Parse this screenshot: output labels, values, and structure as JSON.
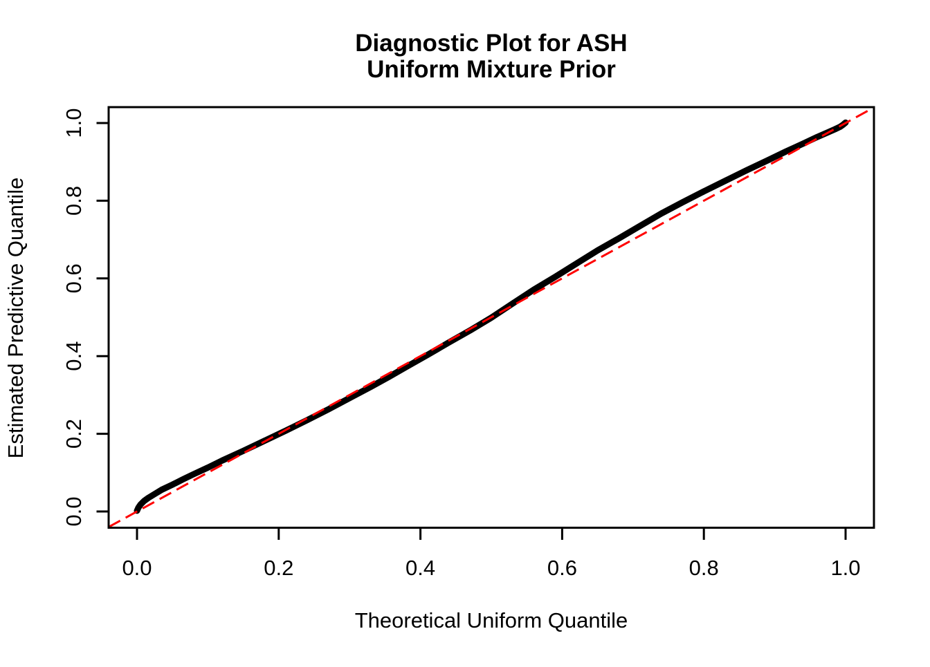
{
  "chart_data": {
    "type": "scatter",
    "title_lines": [
      "Diagnostic Plot for ASH",
      "Uniform Mixture Prior"
    ],
    "xlabel": "Theoretical Uniform Quantile",
    "ylabel": "Estimated Predictive Quantile",
    "xlim": [
      -0.04,
      1.04
    ],
    "ylim": [
      -0.04,
      1.04
    ],
    "grid": false,
    "legend": null,
    "x_tick_values": [
      0.0,
      0.2,
      0.4,
      0.6,
      0.8,
      1.0
    ],
    "x_tick_labels": [
      "0.0",
      "0.2",
      "0.4",
      "0.6",
      "0.8",
      "1.0"
    ],
    "y_tick_values": [
      0.0,
      0.2,
      0.4,
      0.6,
      0.8,
      1.0
    ],
    "y_tick_labels": [
      "0.0",
      "0.2",
      "0.4",
      "0.6",
      "0.8",
      "1.0"
    ],
    "colors": {
      "background": "#FFFFFF",
      "axis": "#000000",
      "curve": "#000000",
      "reference_line": "#FF0000"
    },
    "series": [
      {
        "name": "ash-estimated-predictive-quantiles",
        "style": "thick-point-curve",
        "color": "#000000",
        "line_width": 9,
        "points": [
          [
            0.0,
            0.002
          ],
          [
            0.002,
            0.01
          ],
          [
            0.005,
            0.018
          ],
          [
            0.01,
            0.027
          ],
          [
            0.016,
            0.035
          ],
          [
            0.025,
            0.045
          ],
          [
            0.035,
            0.056
          ],
          [
            0.05,
            0.069
          ],
          [
            0.065,
            0.083
          ],
          [
            0.08,
            0.096
          ],
          [
            0.1,
            0.113
          ],
          [
            0.12,
            0.131
          ],
          [
            0.15,
            0.156
          ],
          [
            0.18,
            0.182
          ],
          [
            0.21,
            0.208
          ],
          [
            0.24,
            0.235
          ],
          [
            0.27,
            0.263
          ],
          [
            0.3,
            0.292
          ],
          [
            0.33,
            0.321
          ],
          [
            0.355,
            0.346
          ],
          [
            0.38,
            0.372
          ],
          [
            0.41,
            0.403
          ],
          [
            0.44,
            0.435
          ],
          [
            0.47,
            0.466
          ],
          [
            0.5,
            0.499
          ],
          [
            0.53,
            0.535
          ],
          [
            0.56,
            0.571
          ],
          [
            0.59,
            0.604
          ],
          [
            0.62,
            0.638
          ],
          [
            0.65,
            0.672
          ],
          [
            0.68,
            0.703
          ],
          [
            0.71,
            0.735
          ],
          [
            0.74,
            0.767
          ],
          [
            0.77,
            0.796
          ],
          [
            0.8,
            0.824
          ],
          [
            0.83,
            0.851
          ],
          [
            0.86,
            0.878
          ],
          [
            0.89,
            0.904
          ],
          [
            0.915,
            0.926
          ],
          [
            0.94,
            0.947
          ],
          [
            0.96,
            0.964
          ],
          [
            0.975,
            0.976
          ],
          [
            0.985,
            0.984
          ],
          [
            0.992,
            0.99
          ],
          [
            0.996,
            0.995
          ],
          [
            1.0,
            1.001
          ]
        ]
      },
      {
        "name": "identity-reference-line",
        "style": "dashed-line",
        "color": "#FF0000",
        "line_width": 3,
        "dash_pattern": "19 9",
        "points": [
          [
            -0.04,
            -0.04
          ],
          [
            1.04,
            1.04
          ]
        ]
      }
    ]
  }
}
